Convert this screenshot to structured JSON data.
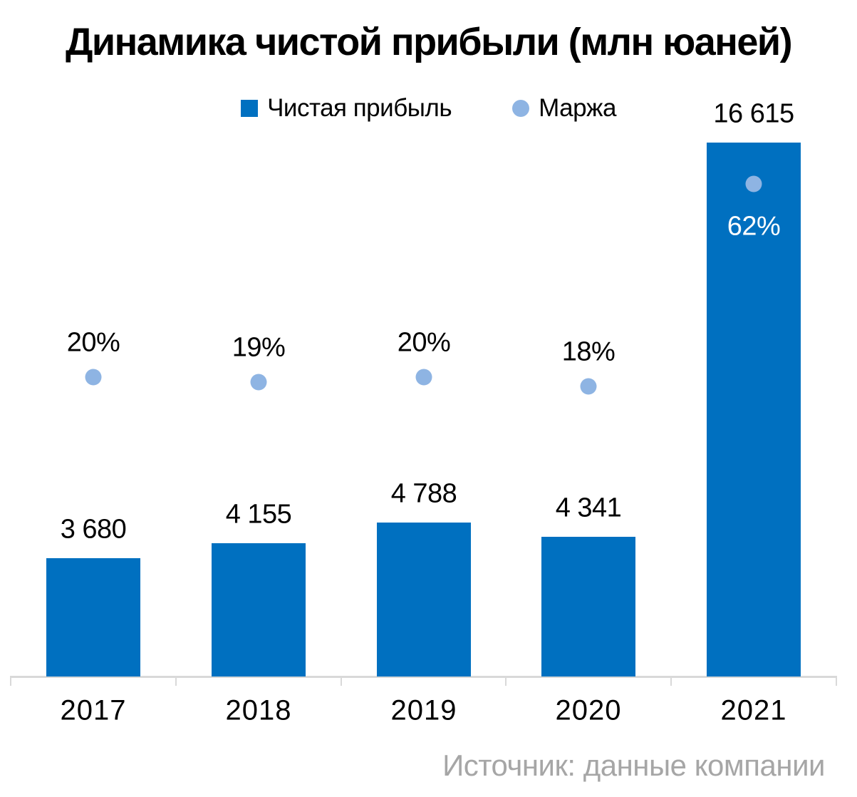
{
  "title": "Динамика чистой прибыли (млн юаней)",
  "source": "Источник: данные компании",
  "legend": [
    {
      "label": "Чистая прибыль",
      "marker": "square-icon",
      "color": "#0070c0"
    },
    {
      "label": "Маржа",
      "marker": "circle-icon",
      "color": "#8eb4e3"
    }
  ],
  "chart_data": {
    "type": "bar",
    "title": "Динамика чистой прибыли (млн юаней)",
    "categories": [
      "2017",
      "2018",
      "2019",
      "2020",
      "2021"
    ],
    "series": [
      {
        "name": "Чистая прибыль",
        "type": "bar",
        "values": [
          3680,
          4155,
          4788,
          4341,
          16615
        ],
        "labels": [
          "3 680",
          "4 155",
          "4 788",
          "4 341",
          "16 615"
        ],
        "color": "#0070c0"
      },
      {
        "name": "Маржа",
        "type": "scatter",
        "values": [
          20,
          19,
          20,
          18,
          62
        ],
        "labels": [
          "20%",
          "19%",
          "20%",
          "18%",
          "62%"
        ],
        "color": "#8eb4e3"
      }
    ],
    "xlabel": "",
    "ylabel": "",
    "ylim": [
      0,
      16615
    ],
    "grid": false,
    "legend_position": "top",
    "axis_color": "#d9d9d9",
    "source": "Источник: данные компании"
  }
}
